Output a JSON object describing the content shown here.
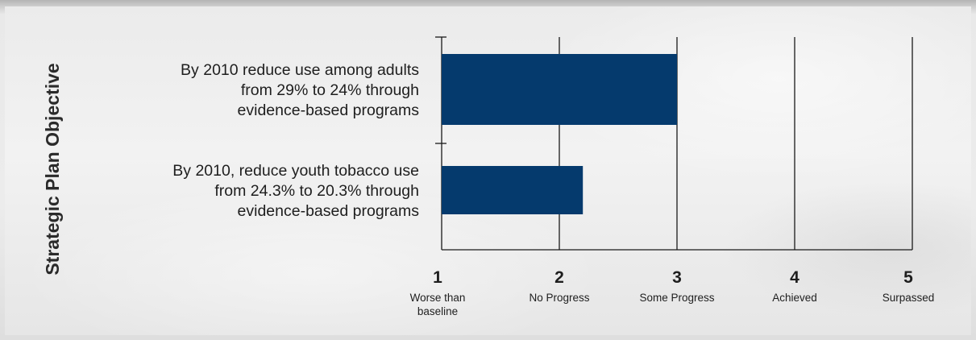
{
  "chart_data": {
    "type": "bar",
    "orientation": "horizontal",
    "ylabel": "Strategic Plan Objective",
    "categories": [
      {
        "lines": [
          "By 2010 reduce use among adults",
          "from 29% to 24% through",
          "evidence-based programs"
        ],
        "value": 3.0
      },
      {
        "lines": [
          "By 2010, reduce youth tobacco use",
          "from 24.3% to 20.3% through",
          "evidence-based programs"
        ],
        "value": 2.2
      }
    ],
    "xticks": [
      {
        "value": 1,
        "label": "1",
        "desc": [
          "Worse than",
          "baseline"
        ]
      },
      {
        "value": 2,
        "label": "2",
        "desc": [
          "No Progress"
        ]
      },
      {
        "value": 3,
        "label": "3",
        "desc": [
          "Some Progress"
        ]
      },
      {
        "value": 4,
        "label": "4",
        "desc": [
          "Achieved"
        ]
      },
      {
        "value": 5,
        "label": "5",
        "desc": [
          "Surpassed"
        ]
      }
    ],
    "xlim": [
      1,
      5
    ],
    "grid": true,
    "bar_color": "#053a6d",
    "gridline_color": "#1a1a1a"
  }
}
